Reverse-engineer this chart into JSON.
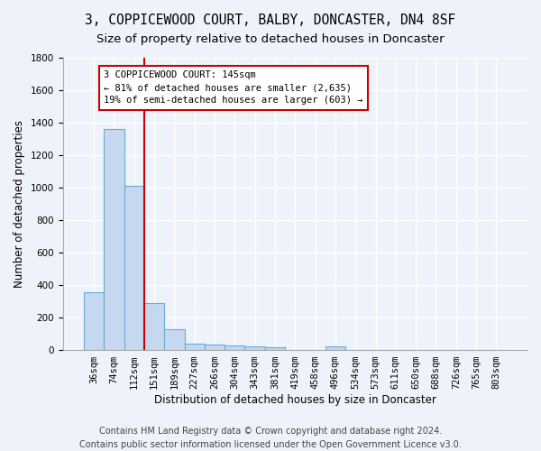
{
  "title": "3, COPPICEWOOD COURT, BALBY, DONCASTER, DN4 8SF",
  "subtitle": "Size of property relative to detached houses in Doncaster",
  "xlabel": "Distribution of detached houses by size in Doncaster",
  "ylabel": "Number of detached properties",
  "bar_labels": [
    "36sqm",
    "74sqm",
    "112sqm",
    "151sqm",
    "189sqm",
    "227sqm",
    "266sqm",
    "304sqm",
    "343sqm",
    "381sqm",
    "419sqm",
    "458sqm",
    "496sqm",
    "534sqm",
    "573sqm",
    "611sqm",
    "650sqm",
    "688sqm",
    "726sqm",
    "765sqm",
    "803sqm"
  ],
  "bar_values": [
    355,
    1360,
    1010,
    285,
    125,
    40,
    32,
    27,
    18,
    15,
    0,
    0,
    20,
    0,
    0,
    0,
    0,
    0,
    0,
    0,
    0
  ],
  "bar_color": "#c5d8f0",
  "bar_edgecolor": "#6aaad4",
  "vline_x": 2.5,
  "vline_color": "#cc0000",
  "annotation_text": "3 COPPICEWOOD COURT: 145sqm\n← 81% of detached houses are smaller (2,635)\n19% of semi-detached houses are larger (603) →",
  "annotation_box_color": "#ffffff",
  "annotation_box_edgecolor": "#cc0000",
  "ylim": [
    0,
    1800
  ],
  "yticks": [
    0,
    200,
    400,
    600,
    800,
    1000,
    1200,
    1400,
    1600,
    1800
  ],
  "footer1": "Contains HM Land Registry data © Crown copyright and database right 2024.",
  "footer2": "Contains public sector information licensed under the Open Government Licence v3.0.",
  "bg_color": "#eef2fa",
  "grid_color": "#ffffff",
  "title_fontsize": 10.5,
  "subtitle_fontsize": 9.5,
  "axis_label_fontsize": 8.5,
  "tick_fontsize": 7.5,
  "footer_fontsize": 7,
  "annotation_fontsize": 7.5
}
